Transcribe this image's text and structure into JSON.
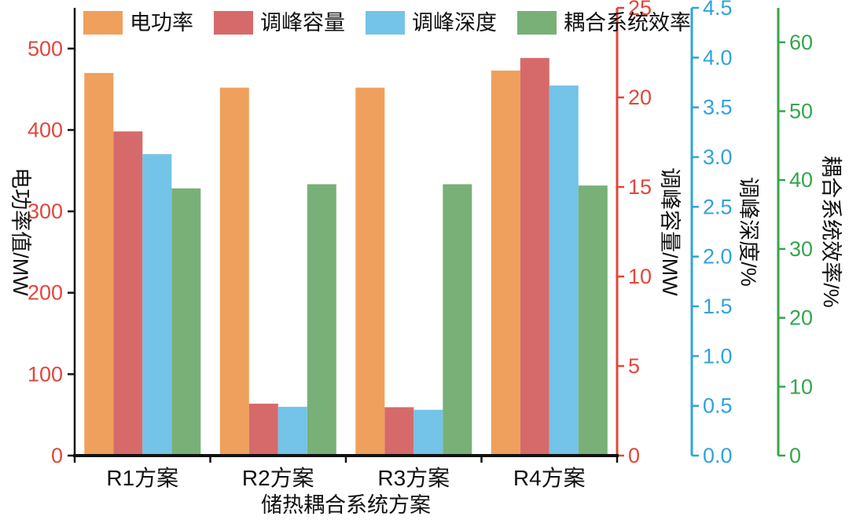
{
  "chart_data": {
    "type": "bar",
    "title": "",
    "xlabel": "储热耦合系统方案",
    "categories": [
      "R1方案",
      "R2方案",
      "R3方案",
      "R4方案"
    ],
    "series": [
      {
        "name": "电功率",
        "axis": "power",
        "color": "#EFA05C",
        "values": [
          470,
          452,
          452,
          473
        ]
      },
      {
        "name": "调峰容量",
        "axis": "capacity",
        "color": "#D66A6B",
        "values": [
          18.1,
          2.9,
          2.7,
          22.2
        ]
      },
      {
        "name": "调峰深度",
        "axis": "depth",
        "color": "#74C3E8",
        "values": [
          3.03,
          0.49,
          0.46,
          3.72
        ]
      },
      {
        "name": "耦合系统效率",
        "axis": "efficiency",
        "color": "#79B077",
        "values": [
          38.8,
          39.4,
          39.4,
          39.2
        ]
      }
    ],
    "axes": {
      "power": {
        "title": "电功率值/MW",
        "side": "left",
        "min": 0,
        "max": 550,
        "ticks": [
          0,
          100,
          200,
          300,
          400,
          500
        ],
        "decimals": 0,
        "spine_color": "#111111",
        "tick_label_color": "#E2463C"
      },
      "capacity": {
        "title": "调峰容量/MW",
        "side": "right",
        "min": 0,
        "max": 25,
        "ticks": [
          0,
          5,
          10,
          15,
          20,
          25
        ],
        "decimals": 0,
        "spine_color": "#E2463C",
        "tick_label_color": "#E2463C"
      },
      "depth": {
        "title": "调峰深度/%",
        "side": "right",
        "min": 0,
        "max": 4.5,
        "ticks": [
          0,
          0.5,
          1,
          1.5,
          2,
          2.5,
          3,
          3.5,
          4,
          4.5
        ],
        "decimals": 1,
        "spine_color": "#2FA3DC",
        "tick_label_color": "#2FA3DC"
      },
      "efficiency": {
        "title": "耦合系统效率/%",
        "side": "right",
        "min": 0,
        "max": 65,
        "ticks": [
          0,
          10,
          20,
          30,
          40,
          50,
          60
        ],
        "decimals": 0,
        "spine_color": "#33A64C",
        "tick_label_color": "#33A64C"
      }
    },
    "legend": {
      "position": "top",
      "entries": [
        "电功率",
        "调峰容量",
        "调峰深度",
        "耦合系统效率"
      ]
    },
    "grid": "off",
    "background": "#ffffff"
  }
}
